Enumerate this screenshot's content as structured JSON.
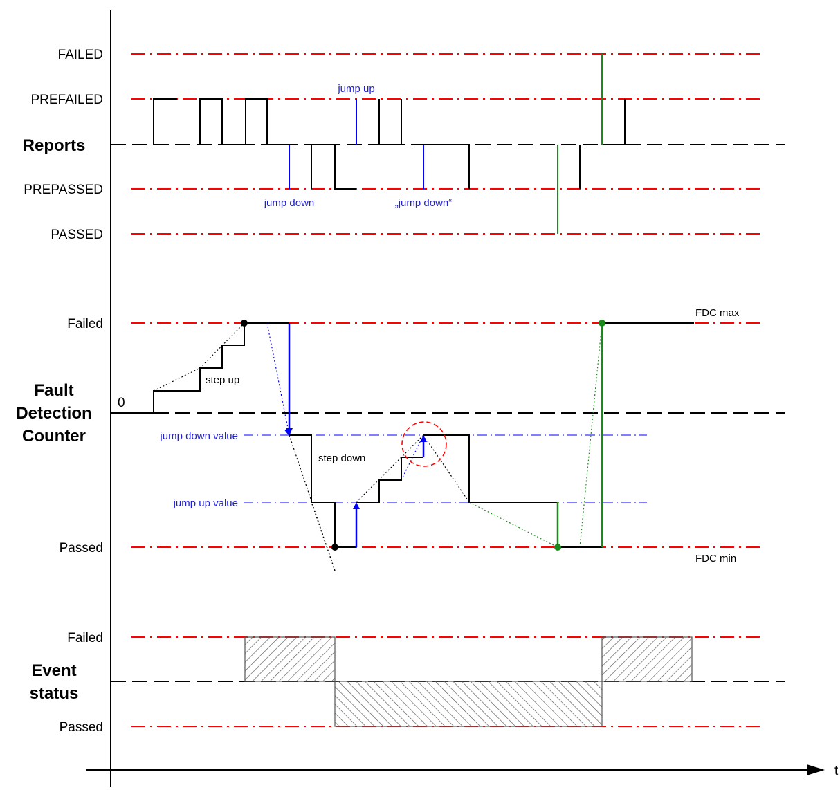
{
  "colors": {
    "threshold": "#ff0000",
    "baseline": "#000000",
    "jump": "#0000ff",
    "annotation": "#1f1fd6",
    "green": "#1a8a1a",
    "hatch": "#555555"
  },
  "reports": {
    "section_label": "Reports",
    "levels": [
      "FAILED",
      "PREFAILED",
      "PREPASSED",
      "PASSED"
    ],
    "annotations": {
      "jump_up": "jump up",
      "jump_down": "jump down",
      "jump_down_quoted": "„jump down“"
    }
  },
  "fdc": {
    "section_label_line1": "Fault",
    "section_label_line2": "Detection",
    "section_label_line3": "Counter",
    "level_failed": "Failed",
    "level_passed": "Passed",
    "zero": "0",
    "jump_down_value": "jump down value",
    "jump_up_value": "jump up value",
    "step_up": "step up",
    "step_down": "step down",
    "fdc_max": "FDC max",
    "fdc_min": "FDC min"
  },
  "event_status": {
    "section_label_line1": "Event",
    "section_label_line2": "status",
    "level_failed": "Failed",
    "level_passed": "Passed"
  },
  "axis": {
    "time_label": "t"
  }
}
